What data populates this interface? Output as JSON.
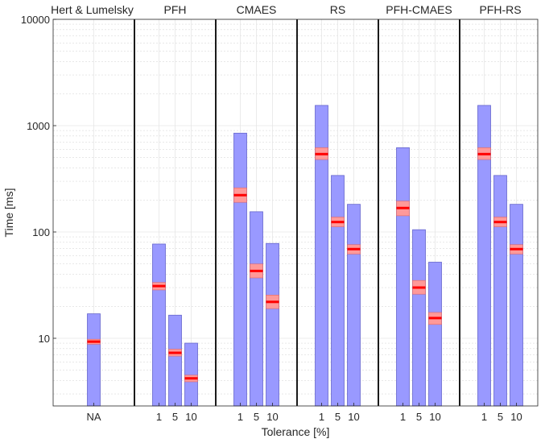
{
  "chart_data": {
    "type": "bar",
    "xlabel": "Tolerance [%]",
    "ylabel": "Time [ms]",
    "yscale": "log",
    "ylim": [
      2.5,
      10000
    ],
    "yticks": [
      10,
      100,
      1000,
      10000
    ],
    "ytick_labels": [
      "10",
      "100",
      "1000",
      "10000"
    ],
    "grid": true,
    "colors": {
      "bar": "#9999ff",
      "bar_edge": "#6666cc",
      "median": "#ff0000",
      "ci_band": "#ff9999",
      "grid": "#e6e6e6"
    },
    "groups": [
      {
        "name": "Hert & Lumelsky",
        "bars": [
          {
            "label": "NA",
            "max": 17,
            "ci_low": 8.8,
            "ci_high": 9.8,
            "median": 9.3
          }
        ]
      },
      {
        "name": "PFH",
        "bars": [
          {
            "label": "1",
            "max": 77,
            "ci_low": 28.5,
            "ci_high": 33.5,
            "median": 31
          },
          {
            "label": "5",
            "max": 16.5,
            "ci_low": 6.8,
            "ci_high": 7.9,
            "median": 7.3
          },
          {
            "label": "10",
            "max": 9,
            "ci_low": 3.9,
            "ci_high": 4.5,
            "median": 4.2
          }
        ]
      },
      {
        "name": "CMAES",
        "bars": [
          {
            "label": "1",
            "max": 850,
            "ci_low": 190,
            "ci_high": 260,
            "median": 222
          },
          {
            "label": "5",
            "max": 155,
            "ci_low": 37,
            "ci_high": 50,
            "median": 43
          },
          {
            "label": "10",
            "max": 78,
            "ci_low": 19,
            "ci_high": 25.5,
            "median": 22
          }
        ]
      },
      {
        "name": "RS",
        "bars": [
          {
            "label": "1",
            "max": 1550,
            "ci_low": 480,
            "ci_high": 620,
            "median": 540
          },
          {
            "label": "5",
            "max": 340,
            "ci_low": 112,
            "ci_high": 138,
            "median": 124
          },
          {
            "label": "10",
            "max": 182,
            "ci_low": 62,
            "ci_high": 76,
            "median": 69
          }
        ]
      },
      {
        "name": "PFH-CMAES",
        "bars": [
          {
            "label": "1",
            "max": 620,
            "ci_low": 142,
            "ci_high": 195,
            "median": 168
          },
          {
            "label": "5",
            "max": 105,
            "ci_low": 26,
            "ci_high": 35,
            "median": 30
          },
          {
            "label": "10",
            "max": 52,
            "ci_low": 13.5,
            "ci_high": 17.5,
            "median": 15.5
          }
        ]
      },
      {
        "name": "PFH-RS",
        "bars": [
          {
            "label": "1",
            "max": 1550,
            "ci_low": 480,
            "ci_high": 620,
            "median": 540
          },
          {
            "label": "5",
            "max": 340,
            "ci_low": 112,
            "ci_high": 138,
            "median": 124
          },
          {
            "label": "10",
            "max": 182,
            "ci_low": 62,
            "ci_high": 76,
            "median": 69
          }
        ]
      }
    ]
  }
}
